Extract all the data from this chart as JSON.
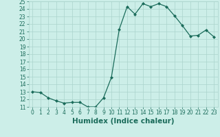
{
  "x": [
    0,
    1,
    2,
    3,
    4,
    5,
    6,
    7,
    8,
    9,
    10,
    11,
    12,
    13,
    14,
    15,
    16,
    17,
    18,
    19,
    20,
    21,
    22,
    23
  ],
  "y": [
    13.0,
    12.9,
    12.2,
    11.8,
    11.5,
    11.6,
    11.6,
    11.0,
    11.0,
    12.2,
    14.9,
    21.3,
    24.3,
    23.3,
    24.7,
    24.3,
    24.7,
    24.3,
    23.1,
    21.8,
    20.4,
    20.5,
    21.2,
    20.3
  ],
  "xlabel": "Humidex (Indice chaleur)",
  "ylim": [
    11,
    25
  ],
  "xlim": [
    -0.5,
    23.5
  ],
  "yticks": [
    11,
    12,
    13,
    14,
    15,
    16,
    17,
    18,
    19,
    20,
    21,
    22,
    23,
    24,
    25
  ],
  "xticks": [
    0,
    1,
    2,
    3,
    4,
    5,
    6,
    7,
    8,
    9,
    10,
    11,
    12,
    13,
    14,
    15,
    16,
    17,
    18,
    19,
    20,
    21,
    22,
    23
  ],
  "line_color": "#1a6b5a",
  "marker": "D",
  "marker_size": 2.0,
  "bg_color": "#cceee8",
  "grid_color": "#aad4cc",
  "xlabel_fontsize": 7.5,
  "tick_fontsize": 5.5,
  "linewidth": 0.9
}
